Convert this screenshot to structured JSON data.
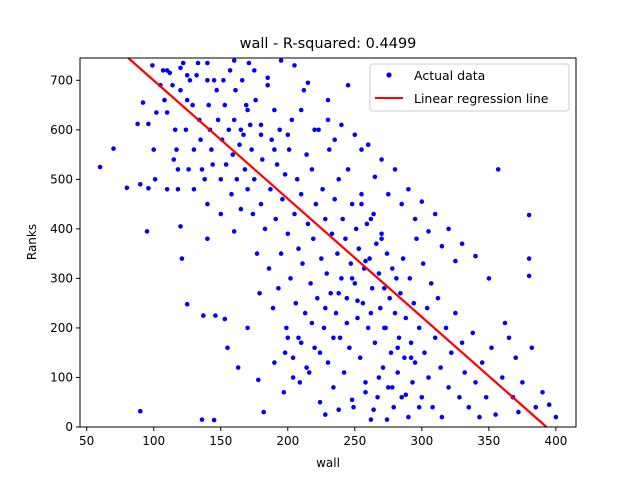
{
  "chart_data": {
    "type": "scatter",
    "title": "wall - R-squared: 0.4499",
    "xlabel": "wall",
    "ylabel": "Ranks",
    "xlim": [
      45,
      415
    ],
    "ylim": [
      0,
      745
    ],
    "xticks": [
      50,
      100,
      150,
      200,
      250,
      300,
      350,
      400
    ],
    "yticks": [
      0,
      100,
      200,
      300,
      400,
      500,
      600,
      700
    ],
    "grid": false,
    "legend_position": "top-right",
    "series": [
      {
        "name": "Actual data",
        "kind": "scatter",
        "color": "#0000ff",
        "points": [
          [
            60,
            525
          ],
          [
            70,
            562
          ],
          [
            80,
            483
          ],
          [
            88,
            612
          ],
          [
            90,
            490
          ],
          [
            90,
            32
          ],
          [
            92,
            655
          ],
          [
            95,
            395
          ],
          [
            96,
            612
          ],
          [
            96,
            482
          ],
          [
            99,
            730
          ],
          [
            100,
            560
          ],
          [
            101,
            500
          ],
          [
            102,
            635
          ],
          [
            105,
            690
          ],
          [
            107,
            720
          ],
          [
            108,
            660
          ],
          [
            110,
            635
          ],
          [
            110,
            480
          ],
          [
            112,
            715
          ],
          [
            114,
            690
          ],
          [
            115,
            540
          ],
          [
            116,
            600
          ],
          [
            117,
            560
          ],
          [
            118,
            520
          ],
          [
            118,
            480
          ],
          [
            120,
            725
          ],
          [
            120,
            680
          ],
          [
            120,
            405
          ],
          [
            121,
            340
          ],
          [
            122,
            735
          ],
          [
            124,
            600
          ],
          [
            125,
            660
          ],
          [
            125,
            248
          ],
          [
            126,
            520
          ],
          [
            127,
            700
          ],
          [
            129,
            650
          ],
          [
            130,
            560
          ],
          [
            130,
            480
          ],
          [
            132,
            710
          ],
          [
            133,
            735
          ],
          [
            134,
            620
          ],
          [
            135,
            580
          ],
          [
            136,
            520
          ],
          [
            136,
            15
          ],
          [
            137,
            225
          ],
          [
            138,
            500
          ],
          [
            140,
            700
          ],
          [
            140,
            380
          ],
          [
            140,
            450
          ],
          [
            141,
            650
          ],
          [
            142,
            600
          ],
          [
            143,
            560
          ],
          [
            144,
            530
          ],
          [
            145,
            14
          ],
          [
            146,
            225
          ],
          [
            147,
            680
          ],
          [
            148,
            620
          ],
          [
            150,
            430
          ],
          [
            150,
            500
          ],
          [
            151,
            580
          ],
          [
            152,
            700
          ],
          [
            153,
            650
          ],
          [
            153,
            218
          ],
          [
            154,
            530
          ],
          [
            155,
            160
          ],
          [
            156,
            600
          ],
          [
            157,
            720
          ],
          [
            158,
            470
          ],
          [
            159,
            550
          ],
          [
            160,
            620
          ],
          [
            160,
            395
          ],
          [
            161,
            680
          ],
          [
            162,
            500
          ],
          [
            163,
            120
          ],
          [
            164,
            570
          ],
          [
            165,
            440
          ],
          [
            166,
            700
          ],
          [
            167,
            590
          ],
          [
            168,
            520
          ],
          [
            169,
            650
          ],
          [
            170,
            480
          ],
          [
            170,
            200
          ],
          [
            171,
            735
          ],
          [
            172,
            610
          ],
          [
            173,
            560
          ],
          [
            174,
            430
          ],
          [
            175,
            500
          ],
          [
            176,
            660
          ],
          [
            177,
            350
          ],
          [
            178,
            95
          ],
          [
            179,
            270
          ],
          [
            180,
            590
          ],
          [
            180,
            450
          ],
          [
            181,
            540
          ],
          [
            182,
            30
          ],
          [
            183,
            400
          ],
          [
            185,
            690
          ],
          [
            186,
            320
          ],
          [
            187,
            480
          ],
          [
            188,
            580
          ],
          [
            189,
            240
          ],
          [
            190,
            640
          ],
          [
            190,
            130
          ],
          [
            191,
            420
          ],
          [
            192,
            530
          ],
          [
            193,
            280
          ],
          [
            194,
            600
          ],
          [
            195,
            350
          ],
          [
            196,
            460
          ],
          [
            197,
            70
          ],
          [
            198,
            510
          ],
          [
            199,
            200
          ],
          [
            200,
            390
          ],
          [
            200,
            180
          ],
          [
            201,
            560
          ],
          [
            202,
            300
          ],
          [
            203,
            620
          ],
          [
            204,
            140
          ],
          [
            205,
            430
          ],
          [
            206,
            250
          ],
          [
            207,
            500
          ],
          [
            208,
            360
          ],
          [
            209,
            90
          ],
          [
            210,
            470
          ],
          [
            210,
            170
          ],
          [
            211,
            330
          ],
          [
            212,
            680
          ],
          [
            213,
            230
          ],
          [
            214,
            550
          ],
          [
            215,
            410
          ],
          [
            216,
            110
          ],
          [
            217,
            290
          ],
          [
            218,
            520
          ],
          [
            219,
            380
          ],
          [
            220,
            160
          ],
          [
            221,
            450
          ],
          [
            222,
            260
          ],
          [
            223,
            600
          ],
          [
            224,
            50
          ],
          [
            225,
            340
          ],
          [
            226,
            480
          ],
          [
            227,
            200
          ],
          [
            228,
            420
          ],
          [
            229,
            310
          ],
          [
            230,
            130
          ],
          [
            231,
            560
          ],
          [
            232,
            270
          ],
          [
            233,
            390
          ],
          [
            234,
            80
          ],
          [
            235,
            460
          ],
          [
            236,
            230
          ],
          [
            237,
            350
          ],
          [
            238,
            500
          ],
          [
            239,
            180
          ],
          [
            240,
            300
          ],
          [
            241,
            420
          ],
          [
            242,
            110
          ],
          [
            243,
            380
          ],
          [
            244,
            260
          ],
          [
            245,
            520
          ],
          [
            246,
            160
          ],
          [
            247,
            330
          ],
          [
            248,
            450
          ],
          [
            249,
            40
          ],
          [
            250,
            290
          ],
          [
            251,
            400
          ],
          [
            252,
            220
          ],
          [
            253,
            360
          ],
          [
            254,
            140
          ],
          [
            255,
            470
          ],
          [
            256,
            250
          ],
          [
            257,
            320
          ],
          [
            258,
            90
          ],
          [
            259,
            410
          ],
          [
            260,
            200
          ],
          [
            261,
            340
          ],
          [
            262,
            15
          ],
          [
            263,
            280
          ],
          [
            264,
            430
          ],
          [
            265,
            170
          ],
          [
            266,
            370
          ],
          [
            267,
            60
          ],
          [
            268,
            310
          ],
          [
            269,
            240
          ],
          [
            270,
            390
          ],
          [
            271,
            120
          ],
          [
            272,
            280
          ],
          [
            273,
            200
          ],
          [
            274,
            350
          ],
          [
            275,
            80
          ],
          [
            276,
            260
          ],
          [
            277,
            150
          ],
          [
            278,
            320
          ],
          [
            279,
            40
          ],
          [
            280,
            230
          ],
          [
            281,
            300
          ],
          [
            282,
            110
          ],
          [
            283,
            180
          ],
          [
            284,
            270
          ],
          [
            285,
            60
          ],
          [
            286,
            340
          ],
          [
            287,
            140
          ],
          [
            288,
            220
          ],
          [
            290,
            20
          ],
          [
            291,
            300
          ],
          [
            292,
            170
          ],
          [
            293,
            90
          ],
          [
            294,
            250
          ],
          [
            295,
            130
          ],
          [
            296,
            380
          ],
          [
            298,
            200
          ],
          [
            300,
            60
          ],
          [
            301,
            330
          ],
          [
            302,
            150
          ],
          [
            304,
            240
          ],
          [
            305,
            100
          ],
          [
            307,
            290
          ],
          [
            308,
            40
          ],
          [
            310,
            180
          ],
          [
            312,
            260
          ],
          [
            314,
            120
          ],
          [
            315,
            20
          ],
          [
            318,
            200
          ],
          [
            320,
            80
          ],
          [
            322,
            150
          ],
          [
            325,
            230
          ],
          [
            328,
            60
          ],
          [
            330,
            170
          ],
          [
            332,
            110
          ],
          [
            335,
            40
          ],
          [
            338,
            190
          ],
          [
            340,
            90
          ],
          [
            343,
            20
          ],
          [
            345,
            130
          ],
          [
            348,
            60
          ],
          [
            350,
            300
          ],
          [
            352,
            160
          ],
          [
            355,
            25
          ],
          [
            357,
            520
          ],
          [
            360,
            100
          ],
          [
            362,
            210
          ],
          [
            365,
            180
          ],
          [
            368,
            60
          ],
          [
            370,
            140
          ],
          [
            372,
            30
          ],
          [
            375,
            90
          ],
          [
            380,
            428
          ],
          [
            380,
            340
          ],
          [
            380,
            305
          ],
          [
            382,
            160
          ],
          [
            385,
            40
          ],
          [
            390,
            70
          ],
          [
            395,
            45
          ],
          [
            400,
            20
          ],
          [
            110,
            720
          ],
          [
            125,
            710
          ],
          [
            140,
            735
          ],
          [
            145,
            700
          ],
          [
            160,
            740
          ],
          [
            175,
            720
          ],
          [
            185,
            705
          ],
          [
            195,
            740
          ],
          [
            205,
            730
          ],
          [
            215,
            695
          ],
          [
            230,
            660
          ],
          [
            240,
            610
          ],
          [
            250,
            590
          ],
          [
            260,
            570
          ],
          [
            270,
            540
          ],
          [
            280,
            520
          ],
          [
            290,
            480
          ],
          [
            300,
            455
          ],
          [
            310,
            430
          ],
          [
            320,
            400
          ],
          [
            330,
            370
          ],
          [
            340,
            345
          ],
          [
            245,
            690
          ],
          [
            230,
            620
          ],
          [
            235,
            580
          ],
          [
            255,
            560
          ],
          [
            265,
            505
          ],
          [
            275,
            470
          ],
          [
            285,
            450
          ],
          [
            295,
            420
          ],
          [
            305,
            395
          ],
          [
            315,
            365
          ],
          [
            325,
            335
          ],
          [
            210,
            640
          ],
          [
            220,
            600
          ],
          [
            200,
            590
          ],
          [
            190,
            560
          ],
          [
            180,
            610
          ],
          [
            170,
            640
          ],
          [
            165,
            600
          ],
          [
            255,
            450
          ],
          [
            262,
            420
          ],
          [
            270,
            380
          ],
          [
            258,
            335
          ],
          [
            248,
            300
          ],
          [
            238,
            270
          ],
          [
            228,
            240
          ],
          [
            218,
            210
          ],
          [
            208,
            180
          ],
          [
            198,
            150
          ],
          [
            252,
            255
          ],
          [
            262,
            230
          ],
          [
            272,
            200
          ],
          [
            282,
            160
          ],
          [
            292,
            140
          ],
          [
            244,
            210
          ],
          [
            234,
            180
          ],
          [
            224,
            150
          ],
          [
            214,
            120
          ],
          [
            204,
            100
          ],
          [
            268,
            100
          ],
          [
            278,
            80
          ],
          [
            288,
            65
          ],
          [
            298,
            40
          ],
          [
            258,
            70
          ],
          [
            248,
            55
          ],
          [
            238,
            35
          ],
          [
            228,
            25
          ],
          [
            264,
            35
          ],
          [
            274,
            15
          ]
        ]
      },
      {
        "name": "Linear regression line",
        "kind": "line",
        "color": "#ff0000",
        "x": [
          81,
          393
        ],
        "y": [
          745,
          0
        ]
      }
    ]
  }
}
